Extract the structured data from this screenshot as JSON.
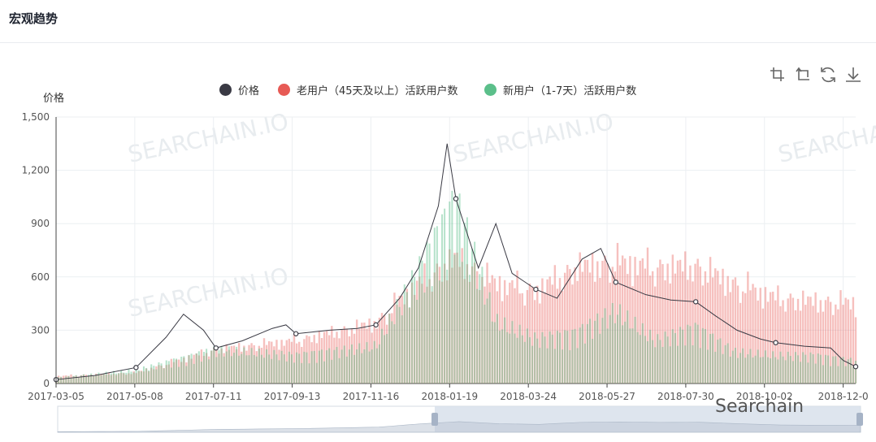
{
  "header": {
    "title": "宏观趋势"
  },
  "toolbox": {
    "icons": [
      "zoom-select-icon",
      "zoom-reset-icon",
      "restore-icon",
      "download-icon"
    ]
  },
  "watermarks": {
    "brand": "SEARCHAIN.IO",
    "footer": "Searchain"
  },
  "colors": {
    "price": "#3a3a44",
    "old_users": "#e75a55",
    "new_users": "#5bbf8a"
  },
  "chart_data": {
    "type": "bar",
    "ylabel": "价格",
    "ylim": [
      0,
      1500
    ],
    "y_ticks": [
      "0",
      "300",
      "600",
      "900",
      "1,200",
      "1,500"
    ],
    "x_ticks": [
      "2017-03-05",
      "2017-05-08",
      "2017-07-11",
      "2017-09-13",
      "2017-11-16",
      "2018-01-19",
      "2018-03-24",
      "2018-05-27",
      "2018-07-30",
      "2018-10-02",
      "2018-12-0"
    ],
    "grid": true,
    "legend_position": "top",
    "series": [
      {
        "name": "价格",
        "type": "line",
        "x": [
          "2017-03-05",
          "2017-04-05",
          "2017-05-08",
          "2017-06-01",
          "2017-06-15",
          "2017-07-01",
          "2017-07-11",
          "2017-08-01",
          "2017-08-25",
          "2017-09-05",
          "2017-09-13",
          "2017-10-10",
          "2017-11-01",
          "2017-11-16",
          "2017-12-05",
          "2017-12-20",
          "2018-01-05",
          "2018-01-12",
          "2018-01-19",
          "2018-02-06",
          "2018-02-20",
          "2018-03-05",
          "2018-03-24",
          "2018-04-10",
          "2018-04-30",
          "2018-05-15",
          "2018-05-27",
          "2018-06-20",
          "2018-07-10",
          "2018-07-30",
          "2018-08-15",
          "2018-09-01",
          "2018-09-20",
          "2018-10-02",
          "2018-10-25",
          "2018-11-15",
          "2018-11-25",
          "2018-12-05"
        ],
        "values": [
          22,
          45,
          90,
          260,
          390,
          300,
          200,
          240,
          310,
          330,
          280,
          300,
          310,
          330,
          480,
          650,
          1000,
          1350,
          1040,
          650,
          900,
          620,
          530,
          480,
          700,
          760,
          570,
          500,
          470,
          460,
          380,
          300,
          250,
          230,
          210,
          200,
          130,
          95
        ]
      },
      {
        "name": "老用户（45天及以上）活跃用户数",
        "type": "bar",
        "x": [
          "2017-03-05",
          "2017-05-08",
          "2017-07-11",
          "2017-09-13",
          "2017-11-16",
          "2017-12-20",
          "2018-01-19",
          "2018-02-20",
          "2018-03-24",
          "2018-04-25",
          "2018-05-27",
          "2018-06-28",
          "2018-07-30",
          "2018-08-30",
          "2018-10-02",
          "2018-11-01",
          "2018-12-05"
        ],
        "values": [
          40,
          60,
          190,
          240,
          340,
          560,
          700,
          560,
          520,
          650,
          680,
          650,
          660,
          560,
          480,
          460,
          450
        ]
      },
      {
        "name": "新用户（1-7天）活跃用户数",
        "type": "bar",
        "x": [
          "2017-03-05",
          "2017-05-08",
          "2017-07-11",
          "2017-09-13",
          "2017-11-16",
          "2017-12-20",
          "2018-01-19",
          "2018-02-20",
          "2018-03-24",
          "2018-04-25",
          "2018-05-27",
          "2018-06-28",
          "2018-07-30",
          "2018-08-30",
          "2018-10-02",
          "2018-11-01",
          "2018-12-05"
        ],
        "values": [
          30,
          70,
          180,
          150,
          200,
          600,
          980,
          330,
          240,
          270,
          390,
          230,
          300,
          170,
          150,
          150,
          120
        ]
      }
    ]
  }
}
